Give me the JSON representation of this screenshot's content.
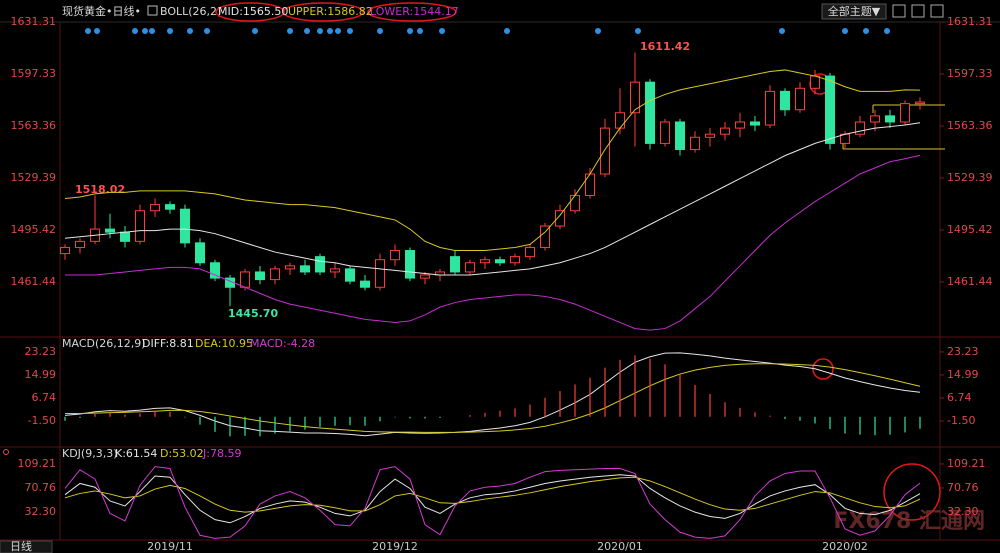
{
  "chart_data": [
    {
      "type": "candlestick",
      "title": "现货黄金•日线•",
      "indicator": "BOLL(26,2)",
      "theme_button": "全部主题▼",
      "period_tab": "日线",
      "watermark": "FX678 汇通网",
      "categories": [
        null,
        null,
        null,
        null,
        null,
        null,
        null,
        "2019/11",
        null,
        null,
        null,
        null,
        null,
        null,
        null,
        null,
        null,
        null,
        null,
        null,
        null,
        null,
        "2019/12",
        null,
        null,
        null,
        null,
        null,
        null,
        null,
        null,
        null,
        null,
        null,
        null,
        null,
        null,
        "2020/01",
        null,
        null,
        null,
        null,
        null,
        null,
        null,
        null,
        null,
        null,
        null,
        null,
        null,
        null,
        "2020/02",
        null,
        null,
        null,
        null,
        null
      ],
      "open": [
        1480,
        1484,
        1488,
        1496,
        1494,
        1488,
        1508,
        1512,
        1509,
        1487,
        1474,
        1464,
        1458,
        1468,
        1463,
        1470,
        1472,
        1478,
        1468,
        1470,
        1462,
        1458,
        1476,
        1482,
        1464,
        1466,
        1478,
        1468,
        1474,
        1476,
        1474,
        1478,
        1484,
        1498,
        1508,
        1518,
        1532,
        1562,
        1572,
        1592,
        1552,
        1566,
        1548,
        1556,
        1558,
        1562,
        1566,
        1564,
        1586,
        1574,
        1588,
        1596,
        1552,
        1558,
        1566,
        1570,
        1566,
        1578
      ],
      "high": [
        1486,
        1490,
        1518.02,
        1506,
        1498,
        1512,
        1516,
        1514,
        1512,
        1490,
        1476,
        1466,
        1470,
        1472,
        1472,
        1474,
        1476,
        1480,
        1474,
        1472,
        1466,
        1480,
        1486,
        1484,
        1468,
        1470,
        1482,
        1476,
        1478,
        1478,
        1480,
        1486,
        1500,
        1512,
        1522,
        1536,
        1568,
        1588,
        1611.42,
        1594,
        1568,
        1568,
        1560,
        1562,
        1566,
        1572,
        1570,
        1590,
        1588,
        1592,
        1600,
        1598,
        1560,
        1570,
        1574,
        1574,
        1580,
        1582
      ],
      "low": [
        1476,
        1480,
        1486,
        1490,
        1484,
        1486,
        1504,
        1506,
        1484,
        1472,
        1462,
        1445.7,
        1456,
        1460,
        1460,
        1466,
        1466,
        1466,
        1464,
        1460,
        1456,
        1456,
        1472,
        1462,
        1460,
        1462,
        1466,
        1466,
        1470,
        1472,
        1472,
        1476,
        1482,
        1496,
        1506,
        1516,
        1530,
        1558,
        1550,
        1548,
        1550,
        1544,
        1546,
        1550,
        1554,
        1556,
        1560,
        1562,
        1570,
        1572,
        1584,
        1548,
        1548,
        1556,
        1560,
        1562,
        1564,
        1574
      ],
      "close": [
        1484,
        1488,
        1496,
        1494,
        1488,
        1508,
        1512,
        1509,
        1487,
        1474,
        1464,
        1458,
        1468,
        1463,
        1470,
        1472,
        1468,
        1468,
        1470,
        1462,
        1458,
        1476,
        1482,
        1464,
        1466,
        1468,
        1468,
        1474,
        1476,
        1474,
        1478,
        1484,
        1498,
        1508,
        1518,
        1532,
        1562,
        1572,
        1592,
        1552,
        1566,
        1548,
        1556,
        1558,
        1562,
        1566,
        1564,
        1586,
        1574,
        1588,
        1596,
        1552,
        1558,
        1566,
        1570,
        1566,
        1578,
        1579
      ],
      "up_color": "#ff3c3c",
      "down_color": "#2ee6a0",
      "series": [
        {
          "name": "MID:1565.50",
          "color": "#e6e6e6",
          "values": [
            1490,
            1491,
            1492,
            1493,
            1494,
            1495,
            1495,
            1496,
            1496,
            1495,
            1493,
            1490,
            1487,
            1484,
            1481,
            1479,
            1477,
            1475,
            1474,
            1472,
            1471,
            1470,
            1469,
            1468,
            1467,
            1466,
            1466,
            1466,
            1467,
            1468,
            1469,
            1470,
            1472,
            1474,
            1477,
            1480,
            1484,
            1489,
            1494,
            1499,
            1504,
            1509,
            1514,
            1519,
            1524,
            1529,
            1534,
            1539,
            1544,
            1548,
            1552,
            1555,
            1558,
            1560,
            1562,
            1563,
            1564,
            1565.5
          ]
        },
        {
          "name": "UPPER:1586.82",
          "color": "#d8c822",
          "values": [
            1516,
            1517,
            1519,
            1520,
            1520,
            1521,
            1521,
            1521,
            1521,
            1520,
            1519,
            1517,
            1515,
            1514,
            1513,
            1512,
            1512,
            1511,
            1510,
            1508,
            1506,
            1504,
            1502,
            1496,
            1488,
            1484,
            1482,
            1482,
            1482,
            1483,
            1484,
            1486,
            1494,
            1505,
            1518,
            1532,
            1548,
            1562,
            1574,
            1580,
            1584,
            1587,
            1589,
            1591,
            1593,
            1595,
            1597,
            1599,
            1600,
            1598,
            1596,
            1593,
            1589,
            1586,
            1586,
            1586,
            1587,
            1586.82
          ]
        },
        {
          "name": "LOWER:1544.17",
          "color": "#c42ed0",
          "values": [
            1466,
            1466,
            1466,
            1467,
            1468,
            1469,
            1470,
            1471,
            1471,
            1470,
            1466,
            1462,
            1458,
            1454,
            1450,
            1447,
            1445,
            1443,
            1441,
            1439,
            1437,
            1436,
            1435,
            1436,
            1440,
            1445,
            1448,
            1450,
            1451,
            1452,
            1453,
            1453,
            1452,
            1450,
            1447,
            1443,
            1439,
            1435,
            1431,
            1430,
            1431,
            1436,
            1444,
            1452,
            1462,
            1472,
            1482,
            1492,
            1500,
            1507,
            1514,
            1520,
            1526,
            1532,
            1536,
            1540,
            1542,
            1544.17
          ]
        }
      ],
      "annotations": [
        "1518.02",
        "1611.42",
        "1445.70"
      ],
      "ylim": [
        1426.8,
        1635.9
      ],
      "yticks": [
        1631.31,
        1597.33,
        1563.36,
        1529.39,
        1495.42,
        1461.44
      ]
    },
    {
      "type": "macd",
      "title": "MACD(26,12,9)",
      "series": [
        {
          "name": "DIFF:8.81",
          "color": "#e6e6e6",
          "values": [
            0.5,
            1.0,
            1.8,
            2.2,
            2.0,
            2.4,
            3.0,
            3.2,
            2.2,
            0.5,
            -1.5,
            -3.2,
            -4.0,
            -5.0,
            -5.2,
            -5.5,
            -5.8,
            -5.8,
            -6.0,
            -6.3,
            -6.8,
            -6.2,
            -5.6,
            -5.8,
            -5.9,
            -5.8,
            -5.6,
            -5.2,
            -4.6,
            -4.0,
            -3.2,
            -2.0,
            0.0,
            2.4,
            5.0,
            8.0,
            12.0,
            16.0,
            19.5,
            21.5,
            22.8,
            22.9,
            22.4,
            21.8,
            21.0,
            20.4,
            19.8,
            19.2,
            18.5,
            18.0,
            17.2,
            15.6,
            13.9,
            12.6,
            11.4,
            10.3,
            9.4,
            8.81
          ]
        },
        {
          "name": "DEA:10.95",
          "color": "#d8c822",
          "values": [
            1.2,
            1.2,
            1.3,
            1.5,
            1.6,
            1.8,
            2.0,
            2.3,
            2.3,
            1.9,
            1.2,
            0.3,
            -0.6,
            -1.5,
            -2.2,
            -2.9,
            -3.5,
            -4.0,
            -4.4,
            -4.8,
            -5.2,
            -5.4,
            -5.5,
            -5.5,
            -5.6,
            -5.6,
            -5.6,
            -5.5,
            -5.3,
            -5.1,
            -4.7,
            -4.2,
            -3.4,
            -2.2,
            -0.8,
            1.0,
            3.2,
            5.8,
            8.5,
            11.1,
            13.4,
            15.3,
            16.7,
            17.7,
            18.4,
            18.8,
            19.0,
            19.0,
            18.9,
            18.7,
            18.4,
            17.8,
            16.9,
            15.8,
            14.7,
            13.5,
            12.2,
            10.95
          ]
        },
        {
          "name": "MACD:-4.28",
          "color": "#d23bd2",
          "type": "bar",
          "up_color": "#ff3c3c",
          "down_color": "#2ee6a0",
          "values": [
            -1.4,
            -0.4,
            1.0,
            1.4,
            0.8,
            1.2,
            2.0,
            1.8,
            -0.2,
            -2.8,
            -5.4,
            -7.0,
            -6.8,
            -7.0,
            -6.0,
            -5.2,
            -4.6,
            -3.6,
            -3.2,
            -3.0,
            -3.2,
            -1.6,
            -0.2,
            -0.6,
            -0.6,
            -0.4,
            0.0,
            0.6,
            1.4,
            2.2,
            3.0,
            4.4,
            6.8,
            9.2,
            11.6,
            14.0,
            17.6,
            20.4,
            22.0,
            20.8,
            18.8,
            15.2,
            11.4,
            8.2,
            5.2,
            3.2,
            1.6,
            0.4,
            -0.8,
            -1.4,
            -2.4,
            -4.4,
            -6.0,
            -6.4,
            -6.6,
            -6.4,
            -5.6,
            -4.28
          ]
        }
      ],
      "ylim": [
        -10.1,
        27.5
      ],
      "yticks": [
        23.23,
        14.99,
        6.74,
        {
          "value": -1.5,
          "label": "-1.50"
        }
      ]
    },
    {
      "type": "line",
      "title": "KDJ(9,3,3)",
      "series": [
        {
          "name": "K:61.54",
          "color": "#e6e6e6",
          "values": [
            60,
            78,
            72,
            50,
            42,
            65,
            90,
            88,
            60,
            35,
            20,
            15,
            25,
            38,
            45,
            50,
            48,
            40,
            30,
            26,
            35,
            65,
            85,
            70,
            40,
            30,
            45,
            55,
            60,
            62,
            66,
            72,
            78,
            82,
            85,
            88,
            90,
            92,
            90,
            70,
            55,
            42,
            32,
            25,
            22,
            30,
            45,
            58,
            66,
            72,
            76,
            60,
            38,
            30,
            28,
            35,
            48,
            61.54
          ]
        },
        {
          "name": "D:53.02",
          "color": "#d8c822",
          "values": [
            55,
            62,
            66,
            61,
            55,
            58,
            69,
            75,
            70,
            58,
            45,
            35,
            32,
            34,
            38,
            42,
            44,
            43,
            39,
            34,
            34,
            44,
            58,
            62,
            55,
            47,
            46,
            49,
            53,
            56,
            59,
            63,
            68,
            73,
            77,
            81,
            84,
            87,
            88,
            82,
            73,
            63,
            53,
            44,
            37,
            35,
            38,
            45,
            52,
            59,
            65,
            63,
            55,
            47,
            41,
            39,
            42,
            53.02
          ]
        },
        {
          "name": "J:78.59",
          "color": "#d23bd2",
          "values": [
            70,
            100,
            85,
            30,
            18,
            75,
            105,
            102,
            40,
            -5,
            -10,
            -8,
            10,
            45,
            58,
            65,
            55,
            35,
            12,
            10,
            38,
            100,
            105,
            85,
            12,
            -4,
            42,
            66,
            72,
            74,
            78,
            88,
            97,
            99,
            100,
            101,
            102,
            102,
            94,
            45,
            20,
            0,
            -8,
            -10,
            -6,
            20,
            58,
            82,
            94,
            98,
            98,
            55,
            5,
            -5,
            2,
            27,
            60,
            78.59
          ]
        }
      ],
      "ylim": [
        -12.6,
        123.6
      ],
      "yticks": [
        109.21,
        70.76,
        {
          "value": 32.3,
          "label": "32.30"
        }
      ]
    }
  ]
}
